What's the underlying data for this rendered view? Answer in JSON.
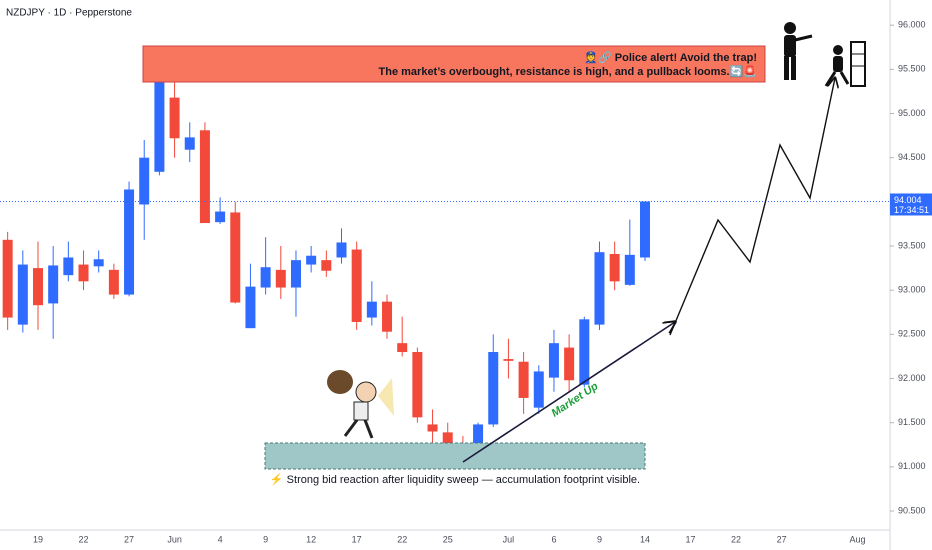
{
  "chart_data": {
    "type": "candlestick",
    "title": "NZDJPY · 1D · Pepperstone",
    "categories": [
      null,
      null,
      "19",
      null,
      null,
      "22",
      null,
      null,
      "27",
      null,
      null,
      "Jun",
      null,
      null,
      "4",
      null,
      null,
      "9",
      null,
      null,
      "12",
      null,
      null,
      "17",
      null,
      null,
      "22",
      null,
      null,
      "25",
      null,
      null,
      null,
      "Jul",
      null,
      null,
      "6",
      null,
      null,
      "9",
      null,
      null,
      "14",
      null,
      null,
      "17",
      null,
      null,
      "22",
      null,
      null,
      "27",
      null,
      null,
      null,
      null,
      "Aug",
      null
    ],
    "open": [
      93.57,
      92.61,
      93.25,
      92.85,
      93.17,
      93.29,
      93.27,
      93.23,
      92.95,
      93.97,
      94.34,
      95.18,
      94.59,
      94.81,
      93.77,
      93.88,
      92.57,
      93.03,
      93.23,
      93.03,
      93.29,
      93.34,
      93.37,
      93.46,
      92.69,
      92.87,
      92.4,
      92.3,
      91.48,
      91.39,
      91.27,
      91.14,
      91.48,
      92.22,
      92.19,
      91.67,
      92.01,
      92.35,
      91.93,
      92.61,
      93.41,
      93.06,
      93.37,
      null,
      null,
      null,
      null,
      null,
      null,
      null,
      null,
      null,
      null,
      null,
      null,
      null,
      null,
      null
    ],
    "high": [
      93.66,
      93.45,
      93.55,
      93.5,
      93.55,
      93.45,
      93.45,
      93.3,
      94.23,
      94.7,
      95.5,
      95.42,
      94.9,
      94.9,
      94.05,
      94.0,
      93.3,
      93.6,
      93.5,
      93.45,
      93.5,
      93.45,
      93.7,
      93.55,
      93.1,
      92.95,
      92.7,
      92.35,
      91.65,
      91.5,
      91.35,
      91.5,
      92.5,
      92.45,
      92.3,
      92.15,
      92.55,
      92.5,
      92.7,
      93.55,
      93.55,
      93.8,
      94.004,
      null,
      null,
      null,
      null,
      null,
      null,
      null,
      null,
      null,
      null,
      null,
      null,
      null,
      null,
      null
    ],
    "low": [
      92.55,
      92.52,
      92.55,
      92.45,
      93.1,
      93.0,
      93.2,
      92.9,
      92.93,
      93.57,
      94.3,
      94.5,
      94.45,
      93.76,
      93.75,
      92.85,
      92.57,
      92.95,
      92.9,
      92.7,
      93.2,
      93.15,
      93.3,
      92.55,
      92.6,
      92.45,
      92.25,
      91.5,
      91.1,
      91.05,
      91.1,
      91.08,
      91.45,
      92.0,
      91.6,
      91.6,
      91.85,
      91.85,
      91.9,
      92.55,
      93.0,
      93.05,
      93.33,
      null,
      null,
      null,
      null,
      null,
      null,
      null,
      null,
      null,
      null,
      null,
      null,
      null,
      null,
      null
    ],
    "close": [
      92.69,
      93.29,
      92.83,
      93.28,
      93.37,
      93.1,
      93.35,
      92.95,
      94.14,
      94.5,
      95.38,
      94.72,
      94.73,
      93.76,
      93.89,
      92.86,
      93.04,
      93.26,
      93.03,
      93.34,
      93.39,
      93.22,
      93.54,
      92.64,
      92.87,
      92.53,
      92.3,
      91.56,
      91.4,
      91.19,
      91.16,
      91.48,
      92.3,
      92.2,
      91.78,
      92.08,
      92.4,
      91.98,
      92.67,
      93.43,
      93.1,
      93.4,
      94.004,
      null,
      null,
      null,
      null,
      null,
      null,
      null,
      null,
      null,
      null,
      null,
      null,
      null,
      null,
      null
    ],
    "up_color": "#2f6bff",
    "down_color": "#f2493a",
    "ylim": [
      90.285,
      96.285
    ],
    "yticks": [
      {
        "value": 90.5,
        "label": "90.500"
      },
      {
        "value": 91,
        "label": "91.000"
      },
      {
        "value": 91.5,
        "label": "91.500"
      },
      {
        "value": 92,
        "label": "92.000"
      },
      {
        "value": 92.5,
        "label": "92.500"
      },
      {
        "value": 93,
        "label": "93.000"
      },
      {
        "value": 93.5,
        "label": "93.500"
      },
      {
        "value": 94,
        "label": "94.000"
      },
      {
        "value": 94.5,
        "label": "94.500"
      },
      {
        "value": 95,
        "label": "95.000"
      },
      {
        "value": 95.5,
        "label": "95.500"
      },
      {
        "value": 96,
        "label": "96.000"
      }
    ],
    "last_price": 94.004,
    "countdown": "17:34:51",
    "annotations": {
      "alert_title": "👮🔗 Police alert!  Avoid the trap!",
      "alert_text": "The market’s overbought, resistance is high, and a pullback looms.🔄🚨",
      "zone_text": "⚡ Strong bid reaction after liquidity sweep — accumulation footprint visible.",
      "trend_text": "Market Up"
    }
  }
}
